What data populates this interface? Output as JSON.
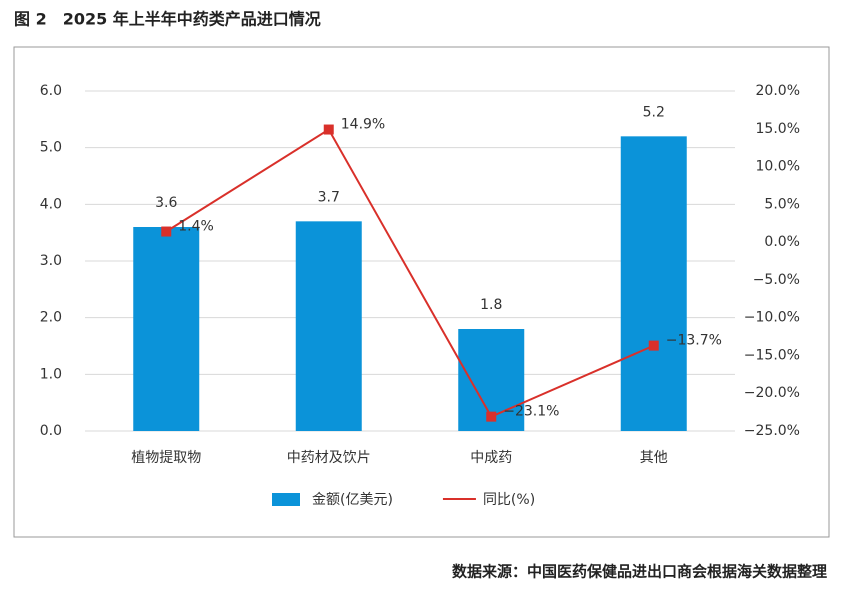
{
  "chart_data": {
    "type": "bar",
    "title": "图 2　2025 年上半年中药类产品进口情况",
    "source": "数据来源：中国医药保健品进出口商会根据海关数据整理",
    "categories": [
      "植物提取物",
      "中药材及饮片",
      "中成药",
      "其他"
    ],
    "series": [
      {
        "name": "金额(亿美元)",
        "type": "bar",
        "color": "#0b93d9",
        "values": [
          3.6,
          3.7,
          1.8,
          5.2
        ]
      },
      {
        "name": "同比(%)",
        "type": "line",
        "axis": "y2",
        "color": "#d9302a",
        "values": [
          1.4,
          14.9,
          -23.1,
          -13.7
        ],
        "value_labels": [
          "1.4%",
          "14.9%",
          "−23.1%",
          "−13.7%"
        ]
      }
    ],
    "ylim": [
      0,
      6
    ],
    "yticks": [
      {
        "value": 0,
        "label": "0.0"
      },
      {
        "value": 1,
        "label": "1.0"
      },
      {
        "value": 2,
        "label": "2.0"
      },
      {
        "value": 3,
        "label": "3.0"
      },
      {
        "value": 4,
        "label": "4.0"
      },
      {
        "value": 5,
        "label": "5.0"
      },
      {
        "value": 6,
        "label": "6.0"
      }
    ],
    "y2lim": [
      -25,
      20
    ],
    "y2ticks": [
      {
        "value": -25,
        "label": "−25.0%"
      },
      {
        "value": -20,
        "label": "−20.0%"
      },
      {
        "value": -15,
        "label": "−15.0%"
      },
      {
        "value": -10,
        "label": "−10.0%"
      },
      {
        "value": -5,
        "label": "−5.0%"
      },
      {
        "value": 0,
        "label": "0.0%"
      },
      {
        "value": 5,
        "label": "5.0%"
      },
      {
        "value": 10,
        "label": "10.0%"
      },
      {
        "value": 15,
        "label": "15.0%"
      },
      {
        "value": 20,
        "label": "20.0%"
      }
    ],
    "grid": true
  }
}
